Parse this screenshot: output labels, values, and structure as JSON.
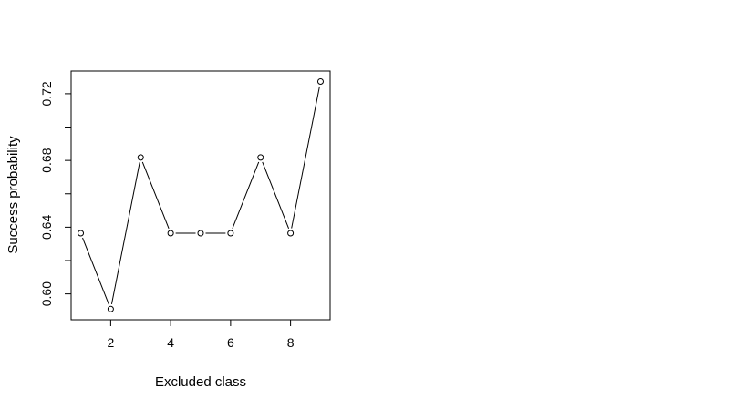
{
  "chart_data": {
    "type": "line",
    "title": "",
    "xlabel": "Excluded class",
    "ylabel": "Success probability",
    "x": [
      1,
      2,
      3,
      4,
      5,
      6,
      7,
      8,
      9
    ],
    "series": [
      {
        "values": [
          0.6364,
          0.5909,
          0.6818,
          0.6364,
          0.6364,
          0.6364,
          0.6818,
          0.6364,
          0.7273
        ]
      }
    ],
    "xlim": [
      0.68,
      9.32
    ],
    "ylim": [
      0.5845,
      0.7336
    ],
    "x_ticks": [
      2,
      4,
      6,
      8
    ],
    "x_tick_labels": [
      "2",
      "4",
      "6",
      "8"
    ],
    "y_ticks": [
      0.6,
      0.62,
      0.64,
      0.66,
      0.68,
      0.7,
      0.72
    ],
    "y_tick_labels": [
      "0.60",
      "",
      "0.64",
      "",
      "0.68",
      "",
      "0.72"
    ],
    "marker": "open-circle",
    "line_style": "broken-line-connecting-markers",
    "line_color": "#000000",
    "grid": false,
    "legend": "none",
    "box": true
  }
}
